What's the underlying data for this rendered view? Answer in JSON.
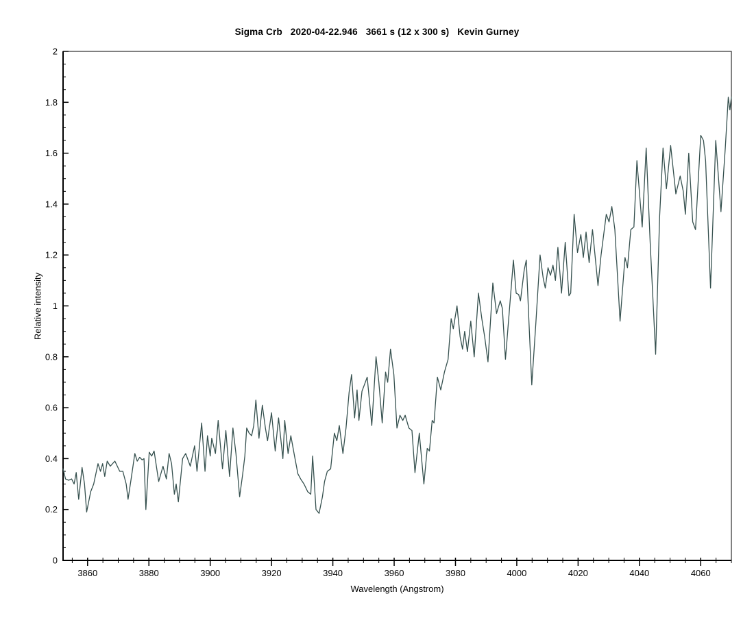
{
  "page": {
    "background": "#ffffff"
  },
  "chart": {
    "title": "Sigma Crb   2020-04-22.946   3661 s (12 x 300 s)   Kevin Gurney",
    "xlabel": "Wavelength (Angstrom)",
    "ylabel": "Relative intensity"
  },
  "chart_data": {
    "type": "line",
    "title": "Sigma Crb   2020-04-22.946   3661 s (12 x 300 s)   Kevin Gurney",
    "xlabel": "Wavelength (Angstrom)",
    "ylabel": "Relative intensity",
    "xlim": [
      3852,
      4070
    ],
    "ylim": [
      0,
      2
    ],
    "x_major_ticks": [
      3860,
      3880,
      3900,
      3920,
      3940,
      3960,
      3980,
      4000,
      4020,
      4040,
      4060
    ],
    "x_minor_step": 5,
    "y_major_ticks": [
      0,
      0.2,
      0.4,
      0.6,
      0.8,
      1,
      1.2,
      1.4,
      1.6,
      1.8,
      2
    ],
    "y_minor_step": 0.05,
    "grid": false,
    "legend": null,
    "line_color": "#35504e",
    "axis_color": "#000000",
    "series": [
      {
        "name": "Sigma Crb relative intensity",
        "points": [
          [
            3852.0,
            0.36
          ],
          [
            3852.8,
            0.32
          ],
          [
            3853.8,
            0.315
          ],
          [
            3854.8,
            0.32
          ],
          [
            3855.6,
            0.3
          ],
          [
            3856.3,
            0.345
          ],
          [
            3857.1,
            0.24
          ],
          [
            3858.2,
            0.365
          ],
          [
            3859.0,
            0.3
          ],
          [
            3859.7,
            0.19
          ],
          [
            3861.0,
            0.27
          ],
          [
            3862.0,
            0.3
          ],
          [
            3863.4,
            0.38
          ],
          [
            3864.2,
            0.35
          ],
          [
            3864.9,
            0.38
          ],
          [
            3865.6,
            0.33
          ],
          [
            3866.4,
            0.39
          ],
          [
            3867.4,
            0.37
          ],
          [
            3868.9,
            0.39
          ],
          [
            3870.5,
            0.35
          ],
          [
            3871.5,
            0.35
          ],
          [
            3872.6,
            0.3
          ],
          [
            3873.2,
            0.24
          ],
          [
            3874.2,
            0.32
          ],
          [
            3875.4,
            0.42
          ],
          [
            3876.2,
            0.39
          ],
          [
            3877.0,
            0.405
          ],
          [
            3877.8,
            0.395
          ],
          [
            3878.4,
            0.4
          ],
          [
            3879.0,
            0.2
          ],
          [
            3880.1,
            0.425
          ],
          [
            3880.9,
            0.41
          ],
          [
            3881.7,
            0.43
          ],
          [
            3883.2,
            0.31
          ],
          [
            3884.6,
            0.37
          ],
          [
            3885.7,
            0.32
          ],
          [
            3886.6,
            0.42
          ],
          [
            3887.4,
            0.38
          ],
          [
            3888.3,
            0.26
          ],
          [
            3888.9,
            0.3
          ],
          [
            3889.6,
            0.23
          ],
          [
            3891.0,
            0.4
          ],
          [
            3892.0,
            0.42
          ],
          [
            3893.5,
            0.37
          ],
          [
            3894.9,
            0.45
          ],
          [
            3895.7,
            0.35
          ],
          [
            3897.2,
            0.54
          ],
          [
            3898.3,
            0.35
          ],
          [
            3899.1,
            0.49
          ],
          [
            3900.0,
            0.41
          ],
          [
            3900.5,
            0.48
          ],
          [
            3901.7,
            0.42
          ],
          [
            3902.6,
            0.55
          ],
          [
            3904.0,
            0.36
          ],
          [
            3905.1,
            0.51
          ],
          [
            3906.3,
            0.33
          ],
          [
            3907.4,
            0.52
          ],
          [
            3908.4,
            0.42
          ],
          [
            3909.6,
            0.25
          ],
          [
            3910.6,
            0.34
          ],
          [
            3911.3,
            0.41
          ],
          [
            3911.9,
            0.52
          ],
          [
            3912.7,
            0.5
          ],
          [
            3913.5,
            0.49
          ],
          [
            3914.2,
            0.53
          ],
          [
            3914.9,
            0.63
          ],
          [
            3915.9,
            0.48
          ],
          [
            3917.0,
            0.61
          ],
          [
            3918.0,
            0.52
          ],
          [
            3918.7,
            0.47
          ],
          [
            3920.0,
            0.58
          ],
          [
            3921.2,
            0.43
          ],
          [
            3922.3,
            0.56
          ],
          [
            3923.7,
            0.4
          ],
          [
            3924.3,
            0.55
          ],
          [
            3925.4,
            0.42
          ],
          [
            3926.3,
            0.49
          ],
          [
            3927.5,
            0.41
          ],
          [
            3928.6,
            0.34
          ],
          [
            3929.5,
            0.32
          ],
          [
            3930.6,
            0.3
          ],
          [
            3931.8,
            0.27
          ],
          [
            3932.8,
            0.26
          ],
          [
            3933.4,
            0.41
          ],
          [
            3934.5,
            0.2
          ],
          [
            3935.5,
            0.185
          ],
          [
            3936.6,
            0.25
          ],
          [
            3937.3,
            0.31
          ],
          [
            3938.2,
            0.35
          ],
          [
            3939.3,
            0.36
          ],
          [
            3940.5,
            0.5
          ],
          [
            3941.3,
            0.47
          ],
          [
            3942.1,
            0.53
          ],
          [
            3943.3,
            0.42
          ],
          [
            3944.3,
            0.52
          ],
          [
            3945.3,
            0.66
          ],
          [
            3946.1,
            0.73
          ],
          [
            3947.1,
            0.56
          ],
          [
            3947.9,
            0.67
          ],
          [
            3948.5,
            0.55
          ],
          [
            3949.5,
            0.665
          ],
          [
            3950.3,
            0.69
          ],
          [
            3951.2,
            0.72
          ],
          [
            3952.7,
            0.53
          ],
          [
            3954.1,
            0.8
          ],
          [
            3955.0,
            0.7
          ],
          [
            3956.1,
            0.54
          ],
          [
            3957.2,
            0.74
          ],
          [
            3957.9,
            0.7
          ],
          [
            3958.8,
            0.83
          ],
          [
            3959.9,
            0.73
          ],
          [
            3960.9,
            0.52
          ],
          [
            3961.9,
            0.57
          ],
          [
            3962.8,
            0.55
          ],
          [
            3963.6,
            0.57
          ],
          [
            3964.8,
            0.52
          ],
          [
            3965.8,
            0.51
          ],
          [
            3966.8,
            0.345
          ],
          [
            3968.2,
            0.5
          ],
          [
            3969.7,
            0.3
          ],
          [
            3970.8,
            0.44
          ],
          [
            3971.5,
            0.43
          ],
          [
            3972.4,
            0.55
          ],
          [
            3973.0,
            0.54
          ],
          [
            3974.1,
            0.72
          ],
          [
            3975.2,
            0.67
          ],
          [
            3976.4,
            0.74
          ],
          [
            3977.6,
            0.79
          ],
          [
            3978.6,
            0.95
          ],
          [
            3979.3,
            0.91
          ],
          [
            3980.5,
            1.0
          ],
          [
            3981.5,
            0.88
          ],
          [
            3982.3,
            0.83
          ],
          [
            3983.0,
            0.9
          ],
          [
            3983.9,
            0.82
          ],
          [
            3985.0,
            0.94
          ],
          [
            3986.1,
            0.8
          ],
          [
            3987.5,
            1.05
          ],
          [
            3988.6,
            0.95
          ],
          [
            3989.5,
            0.88
          ],
          [
            3990.6,
            0.78
          ],
          [
            3992.2,
            1.09
          ],
          [
            3993.4,
            0.97
          ],
          [
            3994.6,
            1.02
          ],
          [
            3995.3,
            0.99
          ],
          [
            3996.3,
            0.79
          ],
          [
            3998.9,
            1.18
          ],
          [
            3999.8,
            1.05
          ],
          [
            4000.6,
            1.045
          ],
          [
            4001.2,
            1.02
          ],
          [
            4002.4,
            1.14
          ],
          [
            4003.1,
            1.18
          ],
          [
            4004.0,
            0.93
          ],
          [
            4004.9,
            0.69
          ],
          [
            4006.2,
            0.93
          ],
          [
            4007.6,
            1.2
          ],
          [
            4008.6,
            1.11
          ],
          [
            4009.3,
            1.07
          ],
          [
            4010.2,
            1.15
          ],
          [
            4011.0,
            1.12
          ],
          [
            4011.8,
            1.16
          ],
          [
            4012.6,
            1.1
          ],
          [
            4013.4,
            1.23
          ],
          [
            4014.6,
            1.05
          ],
          [
            4015.8,
            1.25
          ],
          [
            4017.0,
            1.04
          ],
          [
            4017.6,
            1.05
          ],
          [
            4018.7,
            1.36
          ],
          [
            4019.8,
            1.21
          ],
          [
            4020.9,
            1.28
          ],
          [
            4021.7,
            1.19
          ],
          [
            4022.6,
            1.29
          ],
          [
            4023.6,
            1.17
          ],
          [
            4024.7,
            1.3
          ],
          [
            4026.5,
            1.08
          ],
          [
            4027.5,
            1.2
          ],
          [
            4029.2,
            1.36
          ],
          [
            4030.1,
            1.33
          ],
          [
            4031.0,
            1.39
          ],
          [
            4032.0,
            1.3
          ],
          [
            4033.7,
            0.94
          ],
          [
            4035.3,
            1.19
          ],
          [
            4036.1,
            1.15
          ],
          [
            4037.2,
            1.3
          ],
          [
            4038.2,
            1.31
          ],
          [
            4039.2,
            1.57
          ],
          [
            4040.9,
            1.31
          ],
          [
            4042.2,
            1.62
          ],
          [
            4043.5,
            1.25
          ],
          [
            4045.3,
            0.81
          ],
          [
            4046.6,
            1.35
          ],
          [
            4047.7,
            1.62
          ],
          [
            4048.8,
            1.46
          ],
          [
            4050.2,
            1.63
          ],
          [
            4051.9,
            1.44
          ],
          [
            4053.3,
            1.51
          ],
          [
            4054.3,
            1.45
          ],
          [
            4055.0,
            1.36
          ],
          [
            4056.1,
            1.6
          ],
          [
            4057.4,
            1.33
          ],
          [
            4058.3,
            1.3
          ],
          [
            4060.0,
            1.67
          ],
          [
            4060.9,
            1.65
          ],
          [
            4061.6,
            1.57
          ],
          [
            4063.2,
            1.07
          ],
          [
            4064.9,
            1.65
          ],
          [
            4066.6,
            1.37
          ],
          [
            4068.0,
            1.62
          ],
          [
            4069.0,
            1.82
          ],
          [
            4069.5,
            1.77
          ],
          [
            4070.0,
            1.82
          ]
        ]
      }
    ]
  }
}
